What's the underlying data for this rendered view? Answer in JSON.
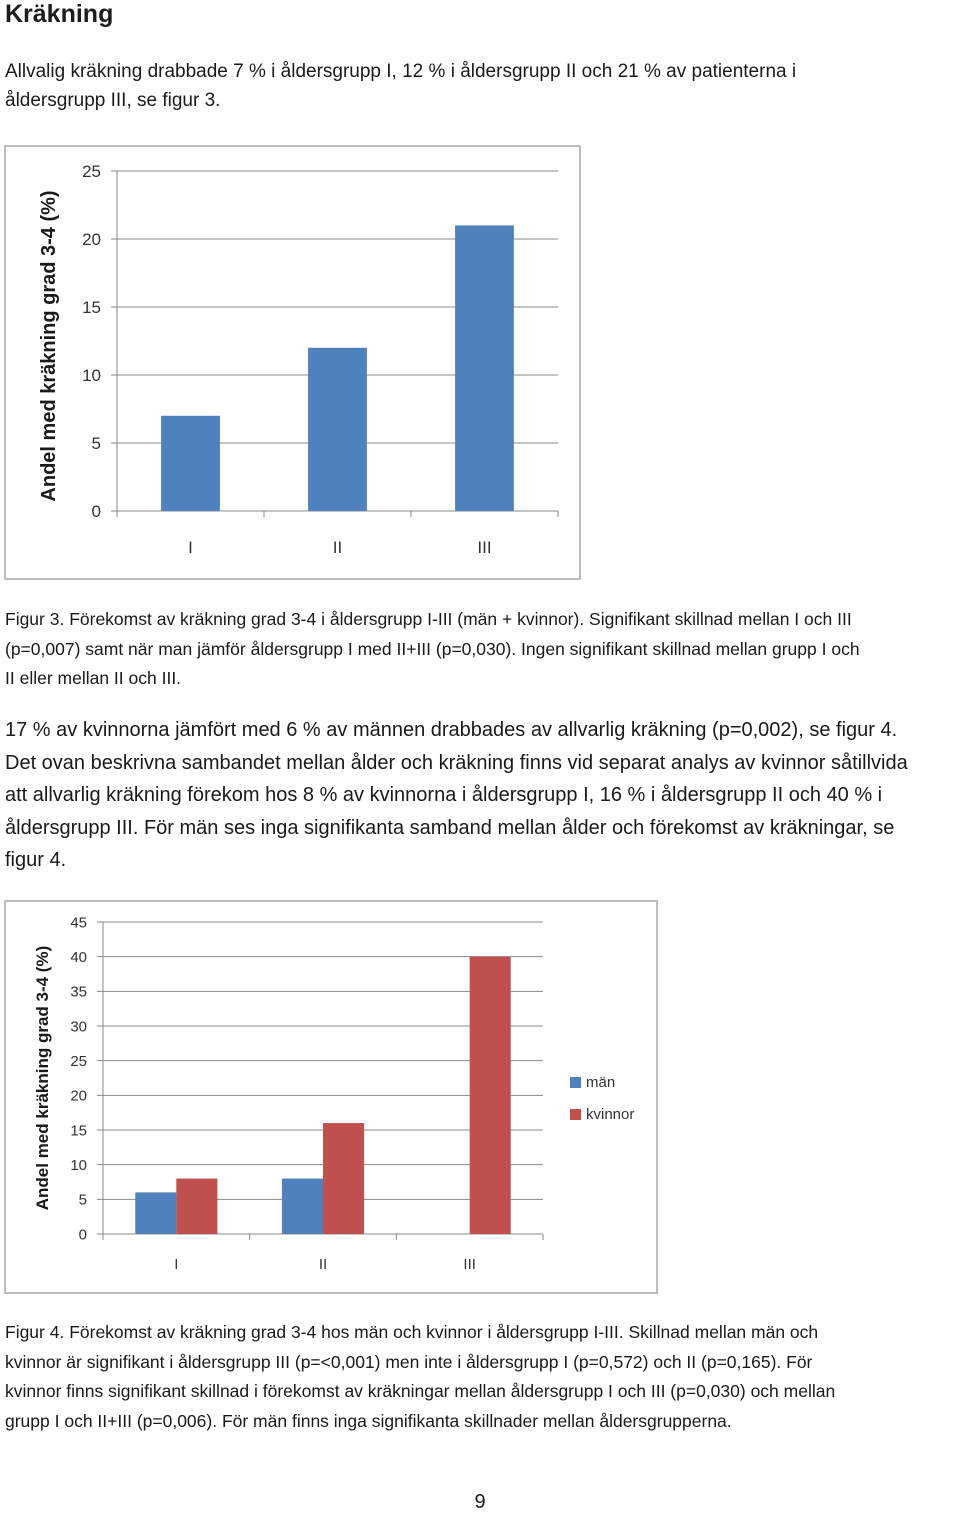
{
  "heading": "Kräkning",
  "intro_lines": [
    "Allvalig kräkning drabbade 7 % i åldersgrupp I, 12 % i åldersgrupp II och 21 % av patienterna i",
    "åldersgrupp III, se figur 3."
  ],
  "figure3_caption_lines": [
    "Figur 3. Förekomst av kräkning grad 3-4 i åldersgrupp I-III (män + kvinnor). Signifikant skillnad mellan I och III",
    "(p=0,007) samt när man jämför åldersgrupp I med II+III (p=0,030). Ingen signifikant skillnad mellan grupp I och",
    "II eller mellan II och III."
  ],
  "body_lines": [
    "17 % av kvinnorna jämfört med 6 % av männen drabbades av allvarlig kräkning (p=0,002), se figur 4.",
    "Det ovan beskrivna sambandet mellan ålder och kräkning finns vid separat analys av kvinnor såtillvida",
    "att allvarlig kräkning förekom hos 8 % av kvinnorna i åldersgrupp I, 16 % i åldersgrupp II och 40 % i",
    "åldersgrupp III. För män ses inga signifikanta samband mellan ålder och förekomst av kräkningar, se",
    "figur 4."
  ],
  "figure4_caption_lines": [
    "Figur 4. Förekomst av kräkning grad 3-4 hos män och kvinnor i åldersgrupp I-III. Skillnad mellan män och",
    "kvinnor är signifikant i åldersgrupp III (p=<0,001) men inte i åldersgrupp I (p=0,572) och II (p=0,165). För",
    "kvinnor finns signifikant skillnad i förekomst av kräkningar mellan åldersgrupp I och III (p=0,030) och mellan",
    "grupp I och II+III (p=0,006).  För män finns inga signifikanta skillnader mellan åldersgrupperna."
  ],
  "page_number": "9",
  "chart_data": [
    {
      "type": "bar",
      "ylabel": "Andel med kräkning grad 3-4 (%)",
      "categories": [
        "I",
        "II",
        "III"
      ],
      "series": [
        {
          "values": [
            7,
            12,
            21
          ],
          "color": "#4f81bd"
        }
      ],
      "ylim": [
        0,
        25
      ],
      "yticks": [
        0,
        5,
        10,
        15,
        20,
        25
      ],
      "ytick_labels": [
        "0",
        "5",
        "10",
        "15",
        "20",
        "25"
      ],
      "grid": true,
      "legend": "none"
    },
    {
      "type": "bar",
      "ylabel": "Andel med kräkning grad 3-4 (%)",
      "categories": [
        "I",
        "II",
        "III"
      ],
      "series": [
        {
          "name": "män",
          "values": [
            6,
            8,
            null
          ],
          "color": "#4f81bd"
        },
        {
          "name": "kvinnor",
          "values": [
            8,
            16,
            40
          ],
          "color": "#c0504d"
        }
      ],
      "ylim": [
        0,
        45
      ],
      "yticks": [
        0,
        5,
        10,
        15,
        20,
        25,
        30,
        35,
        40,
        45
      ],
      "ytick_labels": [
        "0",
        "5",
        "10",
        "15",
        "20",
        "25",
        "30",
        "35",
        "40",
        "45"
      ],
      "grid": true,
      "legend": "right"
    }
  ]
}
